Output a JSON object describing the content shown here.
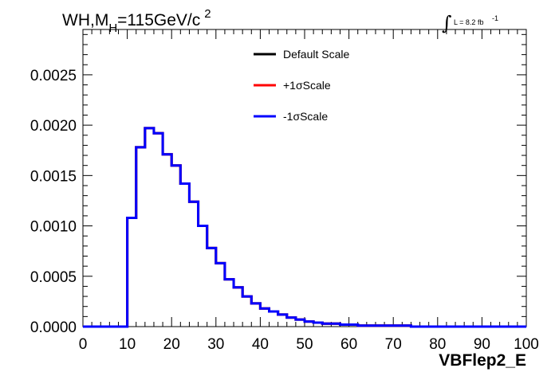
{
  "chart_data": {
    "type": "histogram",
    "title_parts": {
      "main": "WH,M",
      "sub": "H",
      "rest": "=115GeV/c",
      "sup": "2"
    },
    "lumi_parts": {
      "integral": "∫",
      "text": "L = 8.2 fb",
      "sup": "-1"
    },
    "xlabel": "VBFlep2_E",
    "ylabel": "",
    "xlim": [
      0,
      100
    ],
    "ylim": [
      0,
      0.00295
    ],
    "x_ticks": [
      "0",
      "10",
      "20",
      "30",
      "40",
      "50",
      "60",
      "70",
      "80",
      "90",
      "100"
    ],
    "y_ticks": [
      "0.0000",
      "0.0005",
      "0.0010",
      "0.0015",
      "0.0020",
      "0.0025"
    ],
    "bin_width": 2,
    "bin_edges_start": 0,
    "legend_position": "top-center",
    "series": [
      {
        "name": "Default Scale",
        "color": "#000000",
        "values": [
          0,
          0,
          0,
          0,
          0,
          0.00108,
          0.00178,
          0.00197,
          0.00192,
          0.00171,
          0.0016,
          0.00142,
          0.00124,
          0.001,
          0.00078,
          0.00063,
          0.00047,
          0.00039,
          0.0003,
          0.00023,
          0.00018,
          0.00015,
          0.00012,
          9e-05,
          7e-05,
          5e-05,
          4e-05,
          3e-05,
          3e-05,
          2e-05,
          2e-05,
          1e-05,
          1e-05,
          1e-05,
          1e-05,
          1e-05,
          1e-05,
          0,
          0,
          0,
          0,
          0,
          0,
          0,
          0,
          0,
          0,
          0,
          0,
          0
        ]
      },
      {
        "name": "+1σScale",
        "color": "#ff0000",
        "values": [
          0,
          0,
          0,
          0,
          0,
          0.00108,
          0.00178,
          0.00197,
          0.00192,
          0.00171,
          0.0016,
          0.00142,
          0.00124,
          0.001,
          0.00078,
          0.00063,
          0.00047,
          0.00039,
          0.0003,
          0.00023,
          0.00018,
          0.00015,
          0.00012,
          9e-05,
          7e-05,
          5e-05,
          4e-05,
          3e-05,
          3e-05,
          2e-05,
          2e-05,
          1e-05,
          1e-05,
          1e-05,
          1e-05,
          1e-05,
          1e-05,
          0,
          0,
          0,
          0,
          0,
          0,
          0,
          0,
          0,
          0,
          0,
          0,
          0
        ]
      },
      {
        "name": "-1σScale",
        "color": "#0000ff",
        "values": [
          0,
          0,
          0,
          0,
          0,
          0.00108,
          0.00178,
          0.00197,
          0.00192,
          0.00171,
          0.0016,
          0.00142,
          0.00124,
          0.001,
          0.00078,
          0.00063,
          0.00047,
          0.00039,
          0.0003,
          0.00023,
          0.00018,
          0.00015,
          0.00012,
          9e-05,
          7e-05,
          5e-05,
          4e-05,
          3e-05,
          3e-05,
          2e-05,
          2e-05,
          1e-05,
          1e-05,
          1e-05,
          1e-05,
          1e-05,
          1e-05,
          0,
          0,
          0,
          0,
          0,
          0,
          0,
          0,
          0,
          0,
          0,
          0,
          0
        ]
      }
    ]
  }
}
